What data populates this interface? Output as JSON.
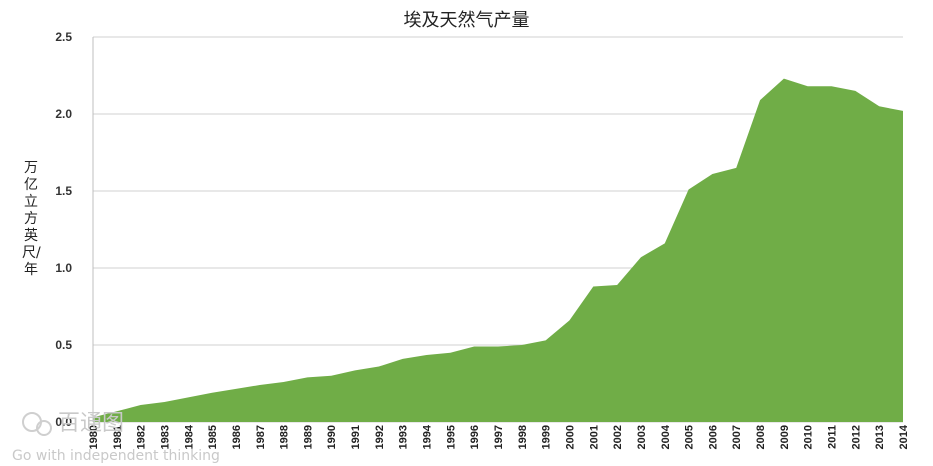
{
  "chart_data": {
    "type": "area",
    "title": "埃及天然气产量",
    "ylabel": "万亿立方英尺/年",
    "xlabel": "",
    "ylim": [
      0,
      2.5
    ],
    "yticks": [
      "0.0",
      "0.5",
      "1.0",
      "1.5",
      "2.0",
      "2.5"
    ],
    "grid": true,
    "legend": "none",
    "color": "#70ad47",
    "x": [
      "1980",
      "1981",
      "1982",
      "1983",
      "1984",
      "1985",
      "1986",
      "1987",
      "1988",
      "1989",
      "1990",
      "1991",
      "1992",
      "1993",
      "1994",
      "1995",
      "1996",
      "1997",
      "1998",
      "1999",
      "2000",
      "2001",
      "2002",
      "2003",
      "2004",
      "2005",
      "2006",
      "2007",
      "2008",
      "2009",
      "2010",
      "2011",
      "2012",
      "2013",
      "2014"
    ],
    "series": [
      {
        "values": [
          0.03,
          0.07,
          0.11,
          0.13,
          0.16,
          0.19,
          0.215,
          0.24,
          0.26,
          0.29,
          0.3,
          0.335,
          0.36,
          0.41,
          0.435,
          0.45,
          0.49,
          0.49,
          0.5,
          0.53,
          0.66,
          0.88,
          0.89,
          1.07,
          1.16,
          1.51,
          1.61,
          1.65,
          2.09,
          2.23,
          2.18,
          2.18,
          2.15,
          2.05,
          2.02
        ]
      }
    ]
  },
  "watermark": {
    "brand": "百通图",
    "slogan": "Go with independent thinking"
  }
}
